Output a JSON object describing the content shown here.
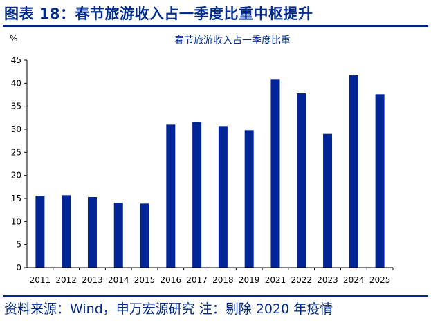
{
  "header": {
    "title": "图表 18：春节旅游收入占一季度比重中枢提升"
  },
  "footer": {
    "source": "资料来源：Wind，申万宏源研究 注：剔除 2020 年疫情"
  },
  "colors": {
    "accent": "#002b8c",
    "bar": "#002596"
  },
  "chart_data": {
    "type": "bar",
    "title": "春节旅游收入占一季度比重",
    "ylabel": "%",
    "xlabel": "",
    "categories": [
      "2011",
      "2012",
      "2013",
      "2014",
      "2015",
      "2016",
      "2017",
      "2018",
      "2019",
      "2021",
      "2022",
      "2023",
      "2024",
      "2025"
    ],
    "values": [
      15.6,
      15.7,
      15.3,
      14.1,
      13.9,
      31.0,
      31.6,
      30.7,
      29.8,
      40.9,
      37.8,
      29.0,
      41.7,
      37.6
    ],
    "ylim": [
      0,
      45
    ],
    "yticks": [
      0,
      5,
      10,
      15,
      20,
      25,
      30,
      35,
      40,
      45
    ],
    "grid": false,
    "legend": "none"
  }
}
